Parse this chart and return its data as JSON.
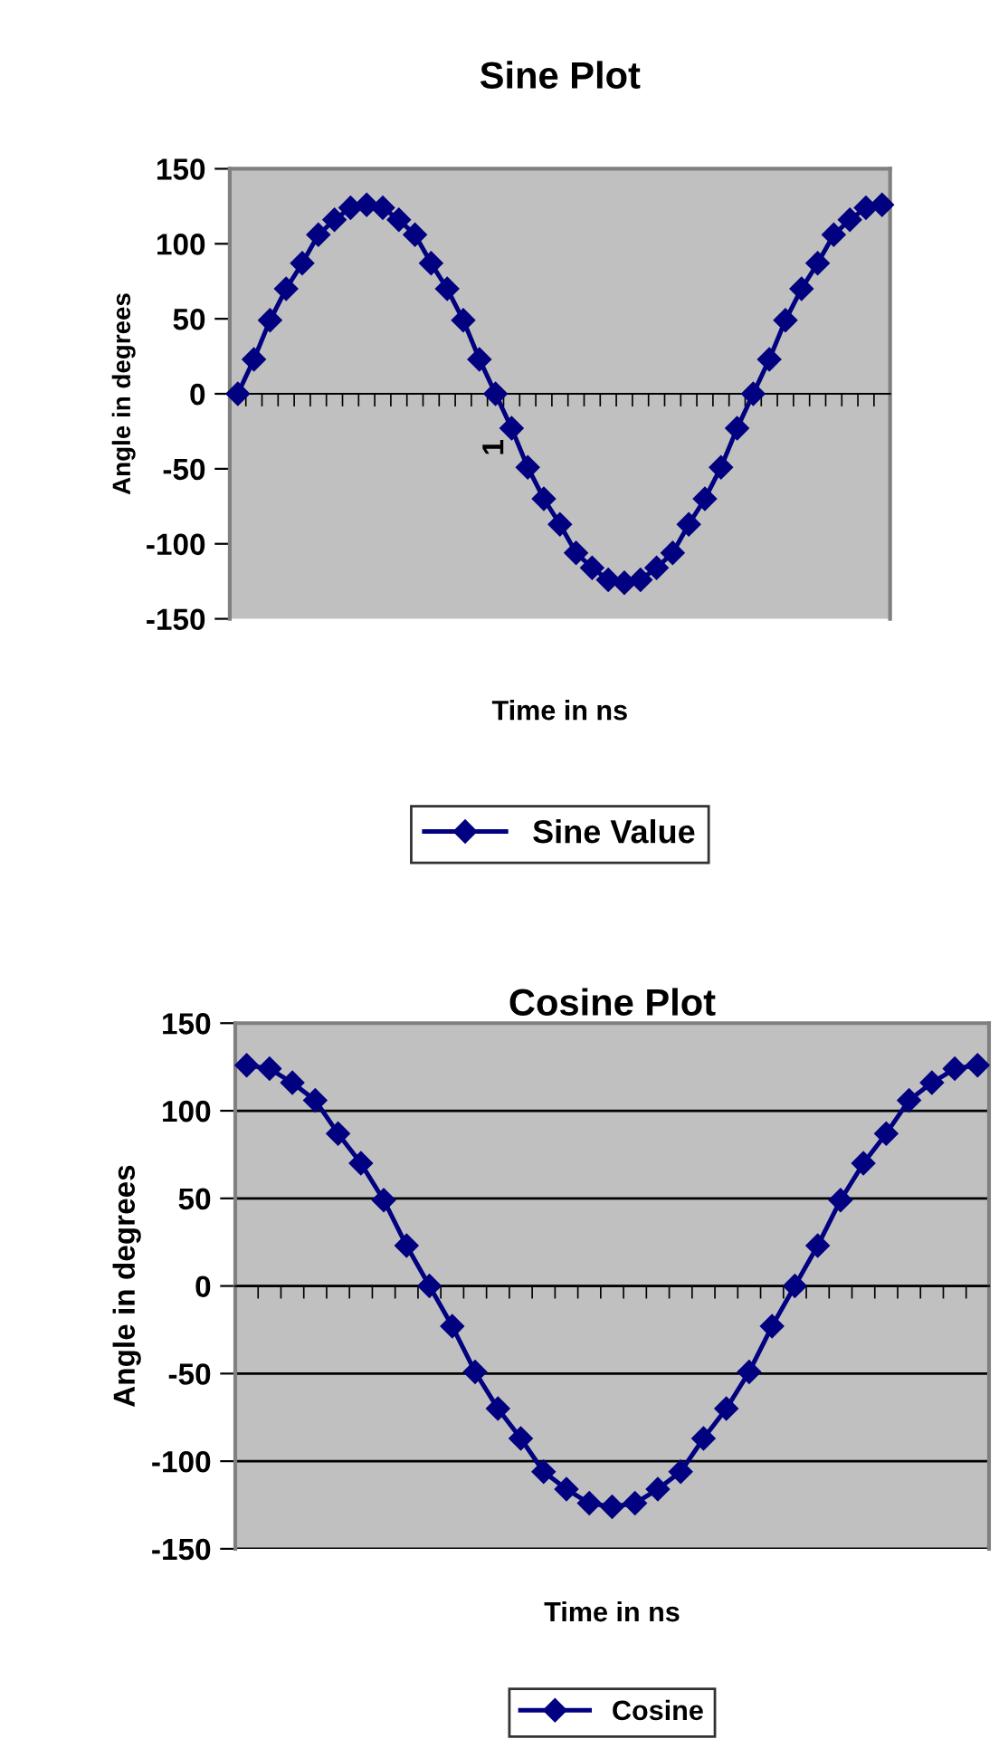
{
  "chart_data": [
    {
      "type": "line",
      "title": "Sine Plot",
      "xlabel": "Time in ns",
      "ylabel": "Angle in degrees",
      "categories": [
        null,
        null,
        null,
        null,
        null,
        null,
        null,
        null,
        null,
        null,
        null,
        null,
        null,
        null,
        null,
        null,
        "1",
        null,
        null,
        null,
        null,
        null,
        null,
        null,
        null,
        null,
        null,
        null,
        null,
        null,
        null,
        null,
        null,
        null,
        null,
        null,
        null,
        null,
        null,
        null,
        null
      ],
      "series": [
        {
          "name": "Sine Value",
          "color": "#000080",
          "values": [
            0,
            23,
            49,
            70,
            87,
            106,
            116,
            124,
            126,
            124,
            116,
            106,
            87,
            70,
            49,
            23,
            0,
            -23,
            -49,
            -70,
            -87,
            -106,
            -116,
            -124,
            -126,
            -124,
            -116,
            -106,
            -87,
            -70,
            -49,
            -23,
            0,
            23,
            49,
            70,
            87,
            106,
            116,
            124,
            126
          ]
        }
      ],
      "ylim": [
        -150,
        150
      ],
      "yticks": [
        -150,
        -100,
        -50,
        0,
        50,
        100,
        150
      ],
      "legend": "bottom",
      "marker": "diamond",
      "line_style": "solid"
    },
    {
      "type": "line",
      "title": "Cosine Plot",
      "xlabel": "Time in ns",
      "ylabel": "Angle in degrees",
      "categories": [
        null,
        null,
        null,
        null,
        null,
        null,
        null,
        null,
        null,
        null,
        null,
        null,
        null,
        null,
        null,
        null,
        null,
        null,
        null,
        null,
        null,
        null,
        null,
        null,
        null,
        null,
        null,
        null,
        null,
        null,
        null,
        null,
        null
      ],
      "series": [
        {
          "name": "Cosine",
          "color": "#000080",
          "values": [
            126,
            124,
            116,
            106,
            87,
            70,
            49,
            23,
            0,
            -23,
            -49,
            -70,
            -87,
            -106,
            -116,
            -124,
            -126,
            -124,
            -116,
            -106,
            -87,
            -70,
            -49,
            -23,
            0,
            23,
            49,
            70,
            87,
            106,
            116,
            124,
            126
          ]
        }
      ],
      "ylim": [
        -150,
        150
      ],
      "yticks": [
        -150,
        -100,
        -50,
        0,
        50,
        100,
        150
      ],
      "grid": "y",
      "legend": "bottom",
      "marker": "diamond",
      "line_style": "solid"
    }
  ]
}
